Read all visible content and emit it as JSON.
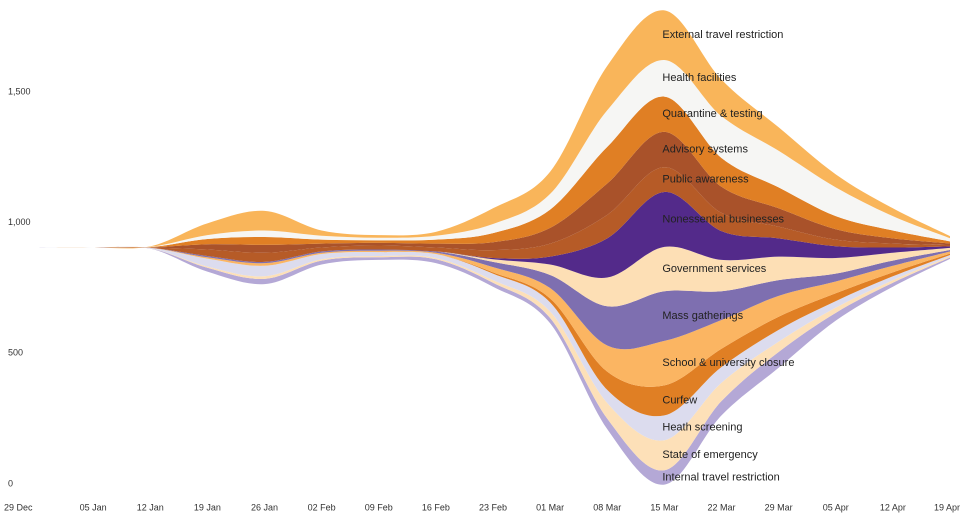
{
  "chart_data": {
    "type": "streamgraph",
    "categories": [
      "29 Dec",
      "05 Jan",
      "12 Jan",
      "19 Jan",
      "26 Jan",
      "02 Feb",
      "09 Feb",
      "16 Feb",
      "23 Feb",
      "01 Mar",
      "08 Mar",
      "15 Mar",
      "22 Mar",
      "29 Mar",
      "05 Apr",
      "12 Apr",
      "19 Apr"
    ],
    "ylim": [
      0,
      1810
    ],
    "yticks": [
      0,
      500,
      {
        "value": 1000,
        "label": "1,000"
      },
      {
        "value": 1500,
        "label": "1,500"
      }
    ],
    "series": [
      {
        "name": "Internal travel restriction",
        "color": "#b4a8d6",
        "values": [
          0,
          0,
          1,
          15,
          20,
          15,
          10,
          15,
          15,
          20,
          40,
          55,
          55,
          60,
          30,
          15,
          5
        ]
      },
      {
        "name": "State of emergency",
        "color": "#fde0b8",
        "values": [
          0,
          0,
          0,
          5,
          10,
          5,
          5,
          5,
          10,
          25,
          60,
          115,
          70,
          40,
          20,
          10,
          4
        ]
      },
      {
        "name": "Heath screening",
        "color": "#dcdcee",
        "values": [
          0,
          0,
          2,
          30,
          40,
          20,
          15,
          15,
          25,
          35,
          50,
          95,
          60,
          45,
          25,
          15,
          6
        ]
      },
      {
        "name": "Curfew",
        "color": "#e07f24",
        "values": [
          0,
          0,
          0,
          0,
          0,
          0,
          0,
          0,
          5,
          15,
          70,
          115,
          70,
          50,
          30,
          15,
          5
        ]
      },
      {
        "name": "School & university closure",
        "color": "#fbb562",
        "values": [
          0,
          0,
          0,
          5,
          10,
          5,
          5,
          5,
          20,
          40,
          100,
          170,
          110,
          80,
          45,
          25,
          8
        ]
      },
      {
        "name": "Mass gatherings",
        "color": "#7e6fb0",
        "values": [
          0,
          0,
          0,
          5,
          5,
          5,
          5,
          5,
          20,
          50,
          150,
          190,
          110,
          60,
          30,
          20,
          6
        ]
      },
      {
        "name": "Government services",
        "color": "#fddfb5",
        "values": [
          0,
          0,
          0,
          0,
          0,
          0,
          0,
          0,
          10,
          40,
          110,
          170,
          120,
          90,
          60,
          30,
          8
        ]
      },
      {
        "name": "Nonessential businesses",
        "color": "#532a8a",
        "values": [
          0,
          0,
          0,
          0,
          0,
          0,
          0,
          0,
          5,
          30,
          150,
          210,
          110,
          70,
          45,
          20,
          6
        ]
      },
      {
        "name": "Public awareness",
        "color": "#b65b27",
        "values": [
          0,
          0,
          1,
          25,
          35,
          15,
          15,
          15,
          30,
          50,
          90,
          95,
          70,
          45,
          25,
          15,
          5
        ]
      },
      {
        "name": "Advisory systems",
        "color": "#a9522a",
        "values": [
          0,
          0,
          1,
          20,
          30,
          15,
          10,
          15,
          30,
          60,
          120,
          135,
          100,
          70,
          40,
          20,
          6
        ]
      },
      {
        "name": "Quarantine & testing",
        "color": "#e07f24",
        "values": [
          0,
          0,
          1,
          20,
          30,
          15,
          10,
          15,
          35,
          70,
          140,
          135,
          110,
          80,
          50,
          30,
          8
        ]
      },
      {
        "name": "Health facilities",
        "color": "#f6f6f4",
        "values": [
          0,
          0,
          1,
          15,
          25,
          15,
          10,
          15,
          35,
          60,
          140,
          140,
          160,
          140,
          110,
          55,
          12
        ]
      },
      {
        "name": "External travel restriction",
        "color": "#f9b55a",
        "values": [
          0,
          0,
          2,
          45,
          75,
          20,
          10,
          15,
          60,
          85,
          170,
          190,
          140,
          90,
          50,
          30,
          8
        ]
      }
    ]
  }
}
